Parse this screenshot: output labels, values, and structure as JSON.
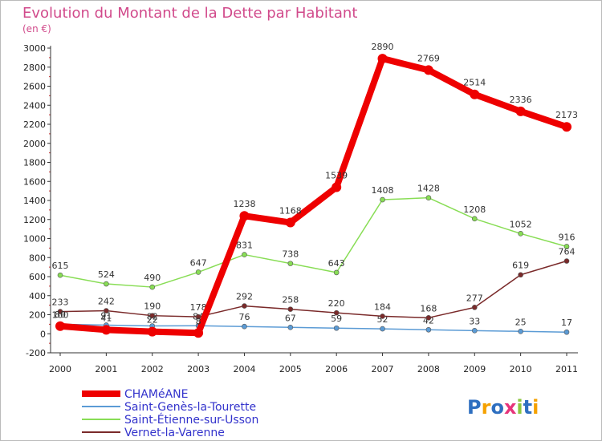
{
  "chart_data": {
    "type": "line",
    "title": "Evolution du Montant de la Dette par Habitant",
    "subtitle": "(en €)",
    "xlabel": "",
    "ylabel": "",
    "categories": [
      "2000",
      "2001",
      "2002",
      "2003",
      "2004",
      "2005",
      "2006",
      "2007",
      "2008",
      "2009",
      "2010",
      "2011"
    ],
    "ylim": [
      -200,
      3000
    ],
    "yticks": [
      -200,
      0,
      200,
      400,
      600,
      800,
      1000,
      1200,
      1400,
      1600,
      1800,
      2000,
      2200,
      2400,
      2600,
      2800,
      3000
    ],
    "grid": false,
    "legend_position": "bottom-left",
    "series": [
      {
        "name": "CHAMéANE",
        "color": "#ee0000",
        "emphasis": true,
        "values": [
          80,
          41,
          22,
          8,
          1238,
          1168,
          1539,
          2890,
          2769,
          2514,
          2336,
          2173
        ],
        "labels": [
          "80",
          "41",
          "22",
          "8",
          "1238",
          "1168",
          "1539",
          "2890",
          "2769",
          "2514",
          "2336",
          "2173"
        ]
      },
      {
        "name": "Saint-Genès-la-Tourette",
        "color": "#5b9bd5",
        "values": [
          100,
          91,
          82,
          84,
          76,
          67,
          59,
          52,
          42,
          33,
          25,
          17
        ],
        "labels": [
          "100",
          "91",
          "82",
          "84",
          "76",
          "67",
          "59",
          "52",
          "42",
          "33",
          "25",
          "17"
        ]
      },
      {
        "name": "Saint-Étienne-sur-Usson",
        "color": "#88dd55",
        "values": [
          615,
          524,
          490,
          647,
          831,
          738,
          643,
          1408,
          1428,
          1208,
          1052,
          916
        ],
        "labels": [
          "615",
          "524",
          "490",
          "647",
          "831",
          "738",
          "643",
          "1408",
          "1428",
          "1208",
          "1052",
          "916"
        ]
      },
      {
        "name": "Vernet-la-Varenne",
        "color": "#7a2a2a",
        "values": [
          233,
          242,
          190,
          178,
          292,
          258,
          220,
          184,
          168,
          277,
          619,
          764
        ],
        "labels": [
          "233",
          "242",
          "190",
          "178",
          "292",
          "258",
          "220",
          "184",
          "168",
          "277",
          "619",
          "764"
        ]
      }
    ]
  },
  "logo": {
    "text": "Proxiti",
    "letters": [
      "P",
      "r",
      "o",
      "x",
      "i",
      "t",
      "i"
    ],
    "colors": [
      "#2e6fc0",
      "#f5a100",
      "#2e6fc0",
      "#e6337a",
      "#8cc63f",
      "#2e6fc0",
      "#f5a100"
    ]
  }
}
